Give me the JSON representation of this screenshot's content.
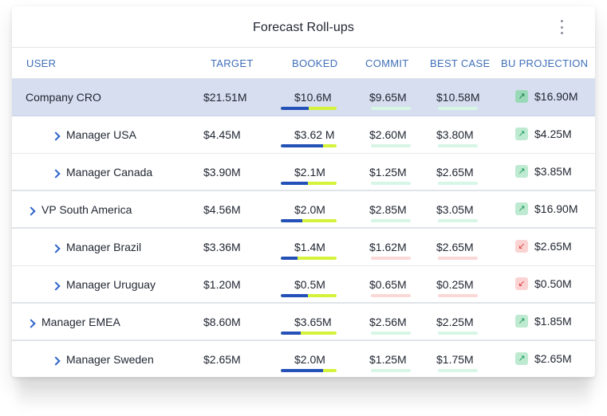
{
  "widget": {
    "title": "Forecast Roll-ups"
  },
  "columns": {
    "user": "USER",
    "target": "TARGET",
    "booked": "BOOKED",
    "commit": "COMMIT",
    "best_case": "BEST CASE",
    "bu_projection": "BU PROJECTION"
  },
  "colors": {
    "booked_fill": "#2451b8",
    "booked_track": "#d4f33a",
    "positive": "#d7f6e6",
    "negative": "#fbd8d8",
    "highlight_row": "#d6deef",
    "header_text": "#3f6fb8"
  },
  "rows": [
    {
      "name": "Company CRO",
      "level": 0,
      "expandable": false,
      "highlight": true,
      "target": "$21.51M",
      "booked": "$10.6M",
      "booked_progress": 0.5,
      "commit": "$9.65M",
      "commit_status": "good",
      "best_case": "$10.58M",
      "best_status": "good",
      "projection": "$16.90M",
      "trend": "up",
      "trend_icon": "arrow-up-right-icon"
    },
    {
      "name": "Manager USA",
      "level": 2,
      "expandable": true,
      "highlight": false,
      "target": "$4.45M",
      "booked": "$3.62 M",
      "booked_progress": 0.75,
      "commit": "$2.60M",
      "commit_status": "good",
      "best_case": "$3.80M",
      "best_status": "good",
      "projection": "$4.25M",
      "trend": "up",
      "trend_icon": "arrow-up-right-icon"
    },
    {
      "name": "Manager Canada",
      "level": 2,
      "expandable": true,
      "highlight": false,
      "target": "$3.90M",
      "booked": "$2.1M",
      "booked_progress": 0.48,
      "commit": "$1.25M",
      "commit_status": "good",
      "best_case": "$2.65M",
      "best_status": "good",
      "projection": "$3.85M",
      "trend": "up",
      "trend_icon": "arrow-up-right-icon",
      "group_end": true
    },
    {
      "name": "VP South America",
      "level": 1,
      "expandable": true,
      "highlight": false,
      "target": "$4.56M",
      "booked": "$2.0M",
      "booked_progress": 0.38,
      "commit": "$2.85M",
      "commit_status": "good",
      "best_case": "$3.05M",
      "best_status": "good",
      "projection": "$16.90M",
      "trend": "up",
      "trend_icon": "arrow-up-right-icon",
      "group_end": true
    },
    {
      "name": "Manager Brazil",
      "level": 2,
      "expandable": true,
      "highlight": false,
      "target": "$3.36M",
      "booked": "$1.4M",
      "booked_progress": 0.3,
      "commit": "$1.62M",
      "commit_status": "bad",
      "best_case": "$2.65M",
      "best_status": "bad",
      "projection": "$2.65M",
      "trend": "down",
      "trend_icon": "arrow-down-left-icon"
    },
    {
      "name": "Manager Uruguay",
      "level": 2,
      "expandable": true,
      "highlight": false,
      "target": "$1.20M",
      "booked": "$0.5M",
      "booked_progress": 0.48,
      "commit": "$0.65M",
      "commit_status": "bad",
      "best_case": "$0.25M",
      "best_status": "bad",
      "projection": "$0.50M",
      "trend": "down",
      "trend_icon": "arrow-down-left-icon",
      "group_end": true
    },
    {
      "name": "Manager EMEA",
      "level": 1,
      "expandable": true,
      "highlight": false,
      "target": "$8.60M",
      "booked": "$3.65M",
      "booked_progress": 0.35,
      "commit": "$2.56M",
      "commit_status": "good",
      "best_case": "$2.25M",
      "best_status": "good",
      "projection": "$1.85M",
      "trend": "up",
      "trend_icon": "arrow-up-right-icon",
      "group_end": true
    },
    {
      "name": "Manager Sweden",
      "level": 2,
      "expandable": true,
      "highlight": false,
      "target": "$2.65M",
      "booked": "$2.0M",
      "booked_progress": 0.75,
      "commit": "$1.25M",
      "commit_status": "good",
      "best_case": "$1.75M",
      "best_status": "good",
      "projection": "$2.65M",
      "trend": "up",
      "trend_icon": "arrow-up-right-icon"
    }
  ]
}
